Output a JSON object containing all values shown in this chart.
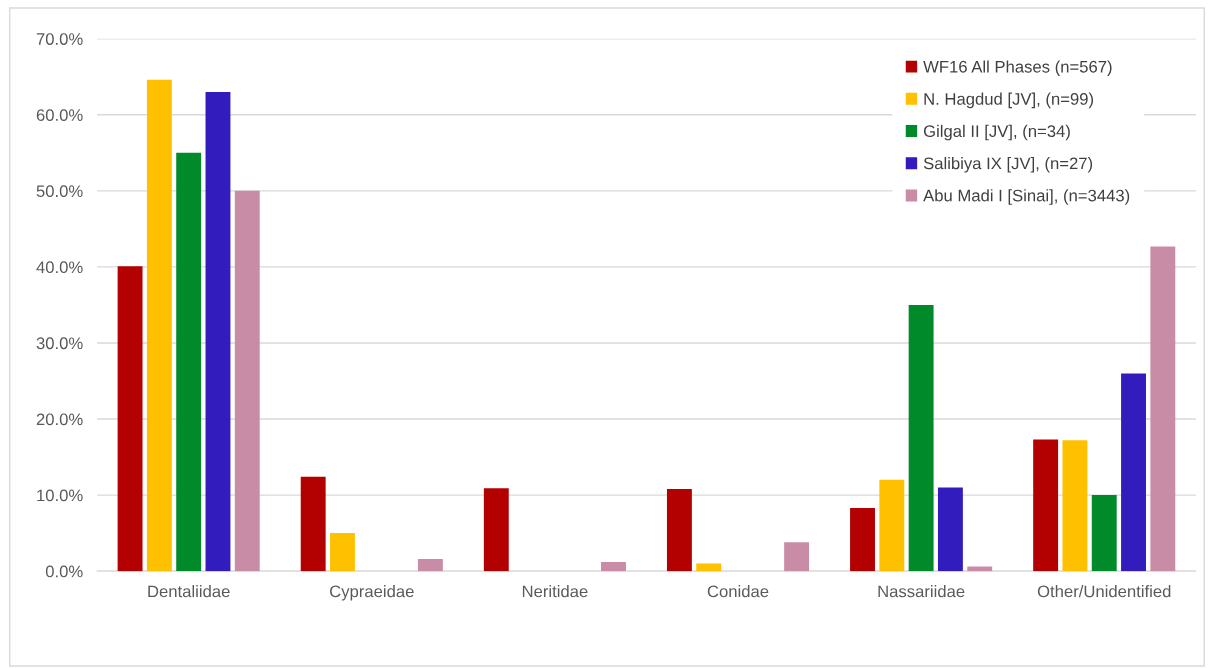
{
  "chart_data": {
    "type": "bar",
    "categories": [
      "Dentaliidae",
      "Cypraeidae",
      "Neritidae",
      "Conidae",
      "Nassariidae",
      "Other/Unidentified"
    ],
    "series": [
      {
        "name": "WF16 All Phases (n=567)",
        "color": "#b30000",
        "values": [
          40.1,
          12.4,
          10.9,
          10.8,
          8.3,
          17.3
        ]
      },
      {
        "name": "N. Hagdud [JV], (n=99)",
        "color": "#ffc000",
        "values": [
          64.6,
          5.0,
          0,
          1.0,
          12.0,
          17.2
        ]
      },
      {
        "name": "Gilgal II [JV], (n=34)",
        "color": "#008a2a",
        "values": [
          55.0,
          0,
          0,
          0,
          35.0,
          10.0
        ]
      },
      {
        "name": "Salibiya IX [JV], (n=27)",
        "color": "#321cbe",
        "values": [
          63.0,
          0,
          0,
          0,
          11.0,
          26.0
        ]
      },
      {
        "name": "Abu Madi I [Sinai], (n=3443)",
        "color": "#c88ca6",
        "values": [
          50.0,
          1.6,
          1.2,
          3.8,
          0.6,
          42.7
        ]
      }
    ],
    "ylim": [
      0,
      70
    ],
    "yticks": [
      {
        "value": 0,
        "label": "0.0%"
      },
      {
        "value": 10,
        "label": "10.0%"
      },
      {
        "value": 20,
        "label": "20.0%"
      },
      {
        "value": 30,
        "label": "30.0%"
      },
      {
        "value": 40,
        "label": "40.0%"
      },
      {
        "value": 50,
        "label": "50.0%"
      },
      {
        "value": 60,
        "label": "60.0%"
      },
      {
        "value": 70,
        "label": "70.0%"
      }
    ],
    "grid": "y",
    "legend": "top right"
  }
}
